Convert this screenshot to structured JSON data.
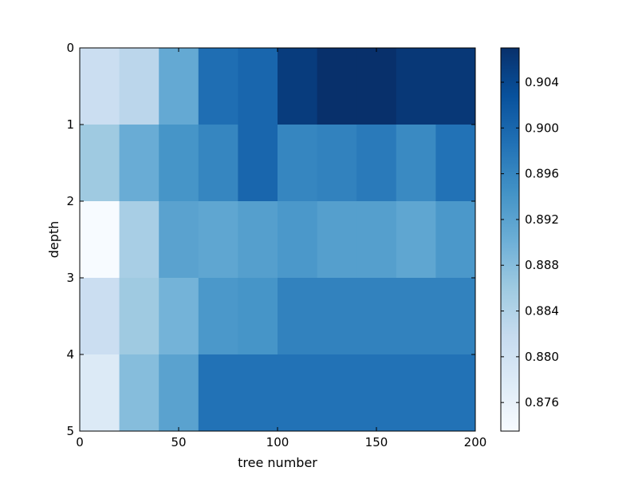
{
  "chart_data": {
    "type": "heatmap",
    "xlabel": "tree number",
    "ylabel": "depth",
    "x_ticks": [
      "0",
      "50",
      "100",
      "150",
      "200"
    ],
    "y_ticks": [
      "0",
      "1",
      "2",
      "3",
      "4",
      "5"
    ],
    "xlim": [
      0,
      200
    ],
    "ylim": [
      0,
      5
    ],
    "x_edges": [
      0,
      20,
      40,
      60,
      80,
      100,
      120,
      140,
      160,
      180,
      200
    ],
    "y_edges": [
      0,
      1,
      2,
      3,
      4,
      5
    ],
    "colormap": "Blues",
    "color_range": [
      0.8735,
      0.907
    ],
    "colorbar_ticks": [
      "0.876",
      "0.880",
      "0.884",
      "0.888",
      "0.892",
      "0.896",
      "0.900",
      "0.904"
    ],
    "values": [
      [
        0.881,
        0.883,
        0.891,
        0.899,
        0.9,
        0.9055,
        0.907,
        0.907,
        0.906,
        0.906
      ],
      [
        0.886,
        0.8905,
        0.894,
        0.896,
        0.9,
        0.896,
        0.8965,
        0.8975,
        0.8955,
        0.8985
      ],
      [
        0.8735,
        0.885,
        0.892,
        0.8915,
        0.8925,
        0.8935,
        0.8925,
        0.8925,
        0.8915,
        0.8935
      ],
      [
        0.881,
        0.886,
        0.8895,
        0.8935,
        0.894,
        0.8965,
        0.8965,
        0.8965,
        0.8965,
        0.8965
      ],
      [
        0.878,
        0.888,
        0.892,
        0.8985,
        0.8985,
        0.8985,
        0.8985,
        0.8985,
        0.8985,
        0.8985
      ]
    ]
  }
}
